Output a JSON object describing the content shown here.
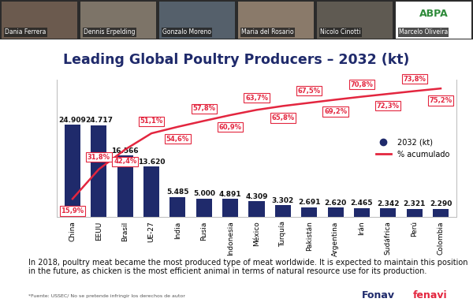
{
  "chart_data": {
    "type": "bar",
    "title": "Leading Global Poultry Producers – 2032 (kt)",
    "categories": [
      "China",
      "EEUU",
      "Brasil",
      "UE-27",
      "India",
      "Rusia",
      "Indonesia",
      "México",
      "Turquía",
      "Pakistán",
      "Argentina",
      "Irán",
      "Sudáfrica",
      "Perú",
      "Colombia"
    ],
    "series": [
      {
        "name": "2032 (kt)",
        "type": "bar",
        "color": "#1f2a6b",
        "values": [
          24909,
          24717,
          16566,
          13620,
          5485,
          5000,
          4891,
          4309,
          3302,
          2691,
          2620,
          2465,
          2342,
          2321,
          2290
        ],
        "value_labels": [
          "24.909",
          "24.717",
          "16.566",
          "13.620",
          "5.485",
          "5.000",
          "4.891",
          "4.309",
          "3.302",
          "2.691",
          "2.620",
          "2.465",
          "2.342",
          "2.321",
          "2.290"
        ]
      },
      {
        "name": "% acumulado",
        "type": "line",
        "color": "#e3263f",
        "axis": "y2",
        "values": [
          15.9,
          31.8,
          42.4,
          51.1,
          54.6,
          57.8,
          60.9,
          63.7,
          65.8,
          67.5,
          69.2,
          70.8,
          72.3,
          73.8,
          75.2
        ],
        "value_labels": [
          "15,9%",
          "31,8%",
          "42,4%",
          "51,1%",
          "54,6%",
          "57,8%",
          "60,9%",
          "63,7%",
          "65,8%",
          "67,5%",
          "69,2%",
          "70,8%",
          "72,3%",
          "73,8%",
          "75,2%"
        ]
      }
    ],
    "ylim": [
      0,
      37000
    ],
    "yticks": [],
    "y2lim": [
      6,
      80
    ],
    "y2ticks": [],
    "data_labels": true,
    "tick_labels": "x",
    "legend": "center right"
  },
  "slide": {
    "caption": "In 2018, poultry meat became the most produced type of meat worldwide. It is expected to maintain this position in the future, as chicken is the most efficient animal in terms of natural resource use for its production.",
    "source": "*Fuente: USSEC/ No se pretende infringir los derechos de autor",
    "logos": [
      "Fonav",
      "fenavi"
    ]
  },
  "video_call": {
    "participants": [
      "Dania Ferrera",
      "Dennis Erpelding",
      "Gonzalo Moreno",
      "Maria del Rosario",
      "Nicolo Cinotti",
      "Marcelo Oliveira"
    ],
    "logo": "ABPA"
  }
}
